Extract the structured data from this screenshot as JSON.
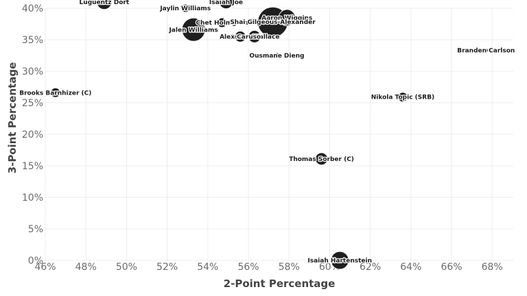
{
  "chart_data": {
    "type": "scatter",
    "xlabel": "2-Point Percentage",
    "ylabel": "3-Point Percentage",
    "xlim": [
      0.46,
      0.69
    ],
    "ylim": [
      0.0,
      0.4
    ],
    "x_ticks": [
      "46%",
      "48%",
      "50%",
      "52%",
      "54%",
      "56%",
      "58%",
      "60%",
      "62%",
      "64%",
      "66%",
      "68%"
    ],
    "y_ticks": [
      "0%",
      "5%",
      "10%",
      "15%",
      "20%",
      "25%",
      "30%",
      "35%",
      "40%"
    ],
    "grid": true,
    "points": [
      {
        "label": "Luguentz Dort",
        "x": 0.489,
        "y": 0.41,
        "size": 11
      },
      {
        "label": "Isaiah Joe",
        "x": 0.549,
        "y": 0.41,
        "size": 10
      },
      {
        "label": "Jaylin Williams",
        "x": 0.529,
        "y": 0.4,
        "size": 6
      },
      {
        "label": "Jalen Williams",
        "x": 0.533,
        "y": 0.366,
        "size": 17
      },
      {
        "label": "Chet Holmgren",
        "x": 0.547,
        "y": 0.377,
        "size": 7
      },
      {
        "label": "Aaron Wiggins",
        "x": 0.579,
        "y": 0.385,
        "size": 12
      },
      {
        "label": "Shai Gilgeous-Alexander",
        "x": 0.572,
        "y": 0.378,
        "size": 22
      },
      {
        "label": "Cason Wallace",
        "x": 0.563,
        "y": 0.355,
        "size": 9
      },
      {
        "label": "Alex Caruso",
        "x": 0.556,
        "y": 0.355,
        "size": 8
      },
      {
        "label": "Ousmane Dieng",
        "x": 0.574,
        "y": 0.325,
        "size": 4
      },
      {
        "label": "Branden Carlson",
        "x": 0.677,
        "y": 0.333,
        "size": 3
      },
      {
        "label": "Brooks Barnhizer (C)",
        "x": 0.465,
        "y": 0.266,
        "size": 7
      },
      {
        "label": "Nikola Topic (SRB)",
        "x": 0.636,
        "y": 0.259,
        "size": 7
      },
      {
        "label": "Thomas Sorber (C)",
        "x": 0.596,
        "y": 0.161,
        "size": 9
      },
      {
        "label": "Isaiah Hartenstein",
        "x": 0.605,
        "y": 0.0,
        "size": 13
      }
    ]
  }
}
